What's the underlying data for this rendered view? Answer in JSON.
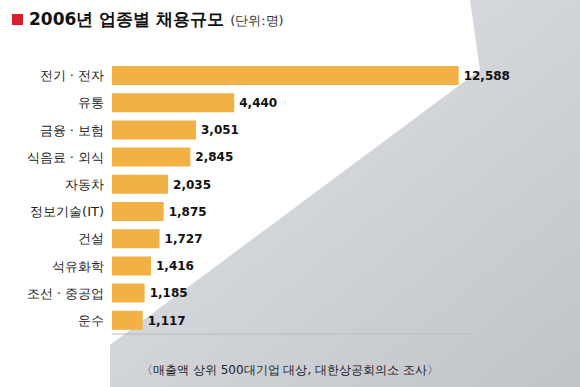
{
  "chart_data": {
    "type": "bar",
    "title": "2006년 업종별 채용규모",
    "subtitle": "(단위:명)",
    "annotations": [
      "〈매출액 상위 500대기업 대상, 대한상공회의소 조사〉"
    ],
    "categories": [
      "전기 · 전자",
      "유통",
      "금융 · 보험",
      "식음료 · 외식",
      "자동차",
      "정보기술(IT)",
      "건설",
      "석유화학",
      "조선 · 중공업",
      "운수"
    ],
    "values": [
      12588,
      4440,
      3051,
      2845,
      2035,
      1875,
      1727,
      1416,
      1185,
      1117
    ],
    "value_labels": [
      "12,588",
      "4,440",
      "3,051",
      "2,845",
      "2,035",
      "1,875",
      "1,727",
      "1,416",
      "1,185",
      "1,117"
    ],
    "color": "#f2b144",
    "orientation": "horizontal",
    "xlim": [
      0,
      13000
    ],
    "data_labels": true,
    "tick_labels": "y",
    "grid": false
  }
}
